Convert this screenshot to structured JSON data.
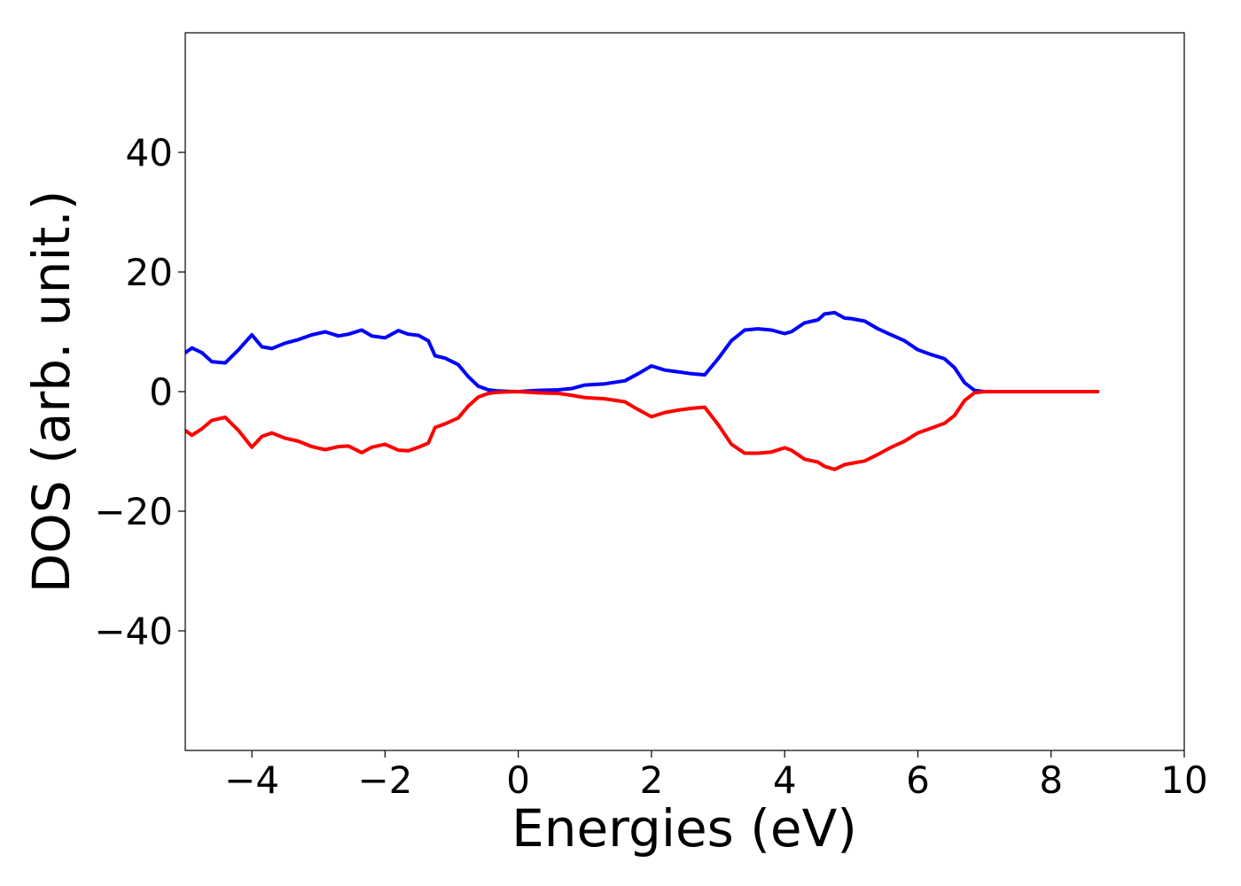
{
  "chart_data": {
    "type": "line",
    "title": "",
    "xlabel": "Energies (eV)",
    "ylabel": "DOS (arb. unit.)",
    "xlim": [
      -5,
      10
    ],
    "ylim": [
      -60,
      60
    ],
    "xticks": [
      -4,
      -2,
      0,
      2,
      4,
      6,
      8,
      10
    ],
    "xtick_labels": [
      "−4",
      "−2",
      "0",
      "2",
      "4",
      "6",
      "8",
      "10"
    ],
    "yticks": [
      -40,
      -20,
      0,
      20,
      40
    ],
    "ytick_labels": [
      "−40",
      "−20",
      "0",
      "20",
      "40"
    ],
    "grid": false,
    "legend": "none",
    "series": [
      {
        "color": "#0000ff",
        "x": [
          -5.0,
          -4.9,
          -4.75,
          -4.6,
          -4.4,
          -4.2,
          -4.0,
          -3.85,
          -3.7,
          -3.5,
          -3.3,
          -3.1,
          -2.9,
          -2.7,
          -2.55,
          -2.35,
          -2.2,
          -2.0,
          -1.8,
          -1.65,
          -1.5,
          -1.35,
          -1.25,
          -1.1,
          -0.9,
          -0.75,
          -0.6,
          -0.45,
          -0.3,
          -0.15,
          0.0,
          0.3,
          0.6,
          0.8,
          1.0,
          1.3,
          1.6,
          1.8,
          2.0,
          2.2,
          2.4,
          2.6,
          2.8,
          3.0,
          3.2,
          3.4,
          3.6,
          3.8,
          4.0,
          4.1,
          4.3,
          4.5,
          4.6,
          4.75,
          4.9,
          5.0,
          5.2,
          5.4,
          5.6,
          5.8,
          6.0,
          6.2,
          6.4,
          6.55,
          6.7,
          6.85,
          7.0,
          7.5,
          8.0,
          8.7
        ],
        "values": [
          6.5,
          7.3,
          6.5,
          5.0,
          4.8,
          7.0,
          9.5,
          7.5,
          7.2,
          8.1,
          8.7,
          9.5,
          10.0,
          9.3,
          9.6,
          10.3,
          9.3,
          9.0,
          10.2,
          9.6,
          9.4,
          8.5,
          6.0,
          5.6,
          4.5,
          2.5,
          0.9,
          0.3,
          0.1,
          0.05,
          0.0,
          0.2,
          0.3,
          0.5,
          1.1,
          1.3,
          1.8,
          3.0,
          4.3,
          3.6,
          3.3,
          3.0,
          2.8,
          5.5,
          8.5,
          10.3,
          10.5,
          10.3,
          9.7,
          10.0,
          11.5,
          12.0,
          13.0,
          13.2,
          12.3,
          12.2,
          11.8,
          10.5,
          9.5,
          8.5,
          7.0,
          6.2,
          5.5,
          4.0,
          1.5,
          0.2,
          0.0,
          0.0,
          0.0,
          0.0
        ]
      },
      {
        "color": "#ff0000",
        "x": [
          -5.0,
          -4.9,
          -4.75,
          -4.6,
          -4.4,
          -4.2,
          -4.0,
          -3.85,
          -3.7,
          -3.5,
          -3.3,
          -3.1,
          -2.9,
          -2.7,
          -2.55,
          -2.35,
          -2.2,
          -2.0,
          -1.8,
          -1.65,
          -1.5,
          -1.35,
          -1.25,
          -1.1,
          -0.9,
          -0.75,
          -0.6,
          -0.45,
          -0.3,
          -0.15,
          0.0,
          0.3,
          0.6,
          0.8,
          1.0,
          1.3,
          1.6,
          1.8,
          2.0,
          2.2,
          2.4,
          2.6,
          2.8,
          3.0,
          3.2,
          3.4,
          3.6,
          3.8,
          4.0,
          4.1,
          4.3,
          4.5,
          4.6,
          4.75,
          4.9,
          5.0,
          5.2,
          5.4,
          5.6,
          5.8,
          6.0,
          6.2,
          6.4,
          6.55,
          6.7,
          6.85,
          7.0,
          7.5,
          8.0,
          8.7
        ],
        "values": [
          -6.5,
          -7.3,
          -6.2,
          -4.8,
          -4.3,
          -6.5,
          -9.3,
          -7.5,
          -6.9,
          -7.8,
          -8.3,
          -9.2,
          -9.7,
          -9.2,
          -9.1,
          -10.2,
          -9.3,
          -8.8,
          -9.8,
          -9.9,
          -9.3,
          -8.6,
          -6.0,
          -5.4,
          -4.4,
          -2.4,
          -0.9,
          -0.3,
          -0.1,
          -0.05,
          0.0,
          -0.2,
          -0.3,
          -0.6,
          -1.0,
          -1.2,
          -1.7,
          -3.0,
          -4.2,
          -3.5,
          -3.1,
          -2.8,
          -2.6,
          -5.5,
          -8.8,
          -10.3,
          -10.3,
          -10.1,
          -9.4,
          -9.8,
          -11.3,
          -11.8,
          -12.5,
          -13.0,
          -12.2,
          -12.0,
          -11.6,
          -10.5,
          -9.3,
          -8.3,
          -6.9,
          -6.1,
          -5.3,
          -4.0,
          -1.5,
          -0.2,
          0.0,
          0.0,
          0.0,
          0.0
        ]
      }
    ]
  }
}
